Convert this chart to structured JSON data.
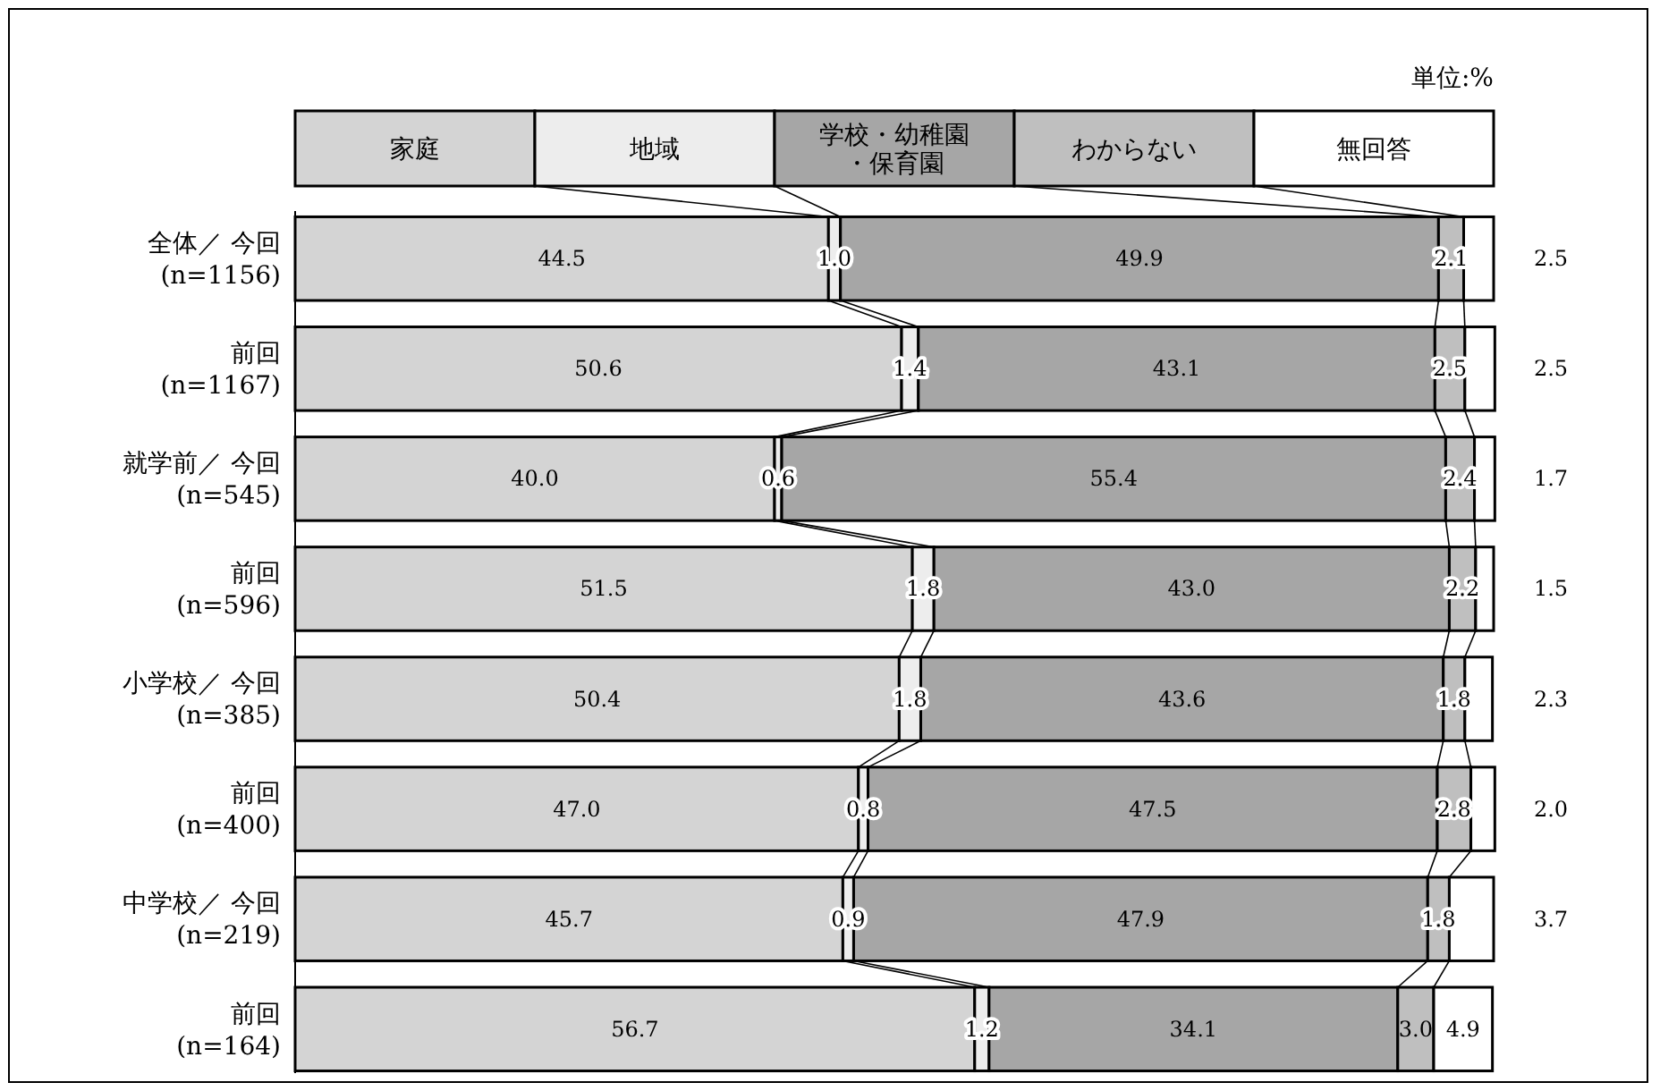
{
  "chart_data": {
    "type": "bar",
    "orientation": "horizontal",
    "stacked": true,
    "xlim": [
      0,
      100
    ],
    "legend": "top",
    "categories": [
      "全体／ 今回\n(n=1156)",
      "前回\n(n=1167)",
      "就学前／ 今回\n(n=545)",
      "前回\n(n=596)",
      "小学校／ 今回\n(n=385)",
      "前回\n(n=400)",
      "中学校／ 今回\n(n=219)",
      "前回\n(n=164)"
    ],
    "series": [
      {
        "name": "家庭",
        "color": "#d4d4d4",
        "values": [
          44.5,
          50.6,
          40.0,
          51.5,
          50.4,
          47.0,
          45.7,
          56.7
        ],
        "value_labels": [
          "44.5",
          "50.6",
          "40.0",
          "51.5",
          "50.4",
          "47.0",
          "45.7",
          "56.7"
        ]
      },
      {
        "name": "地域",
        "color": "#ededed",
        "values": [
          1.0,
          1.4,
          0.6,
          1.8,
          1.8,
          0.8,
          0.9,
          1.2
        ],
        "value_labels": [
          "1.0",
          "1.4",
          "0.6",
          "1.8",
          "1.8",
          "0.8",
          "0.9",
          "1.2"
        ]
      },
      {
        "name": "学校・幼稚園・保育園",
        "color": "#a6a6a6",
        "values": [
          49.9,
          43.1,
          55.4,
          43.0,
          43.6,
          47.5,
          47.9,
          34.1
        ],
        "value_labels": [
          "49.9",
          "43.1",
          "55.4",
          "43.0",
          "43.6",
          "47.5",
          "47.9",
          "34.1"
        ]
      },
      {
        "name": "わからない",
        "color": "#bfbfbf",
        "values": [
          2.1,
          2.5,
          2.4,
          2.2,
          1.8,
          2.8,
          1.8,
          3.0
        ],
        "value_labels": [
          "2.1",
          "2.5",
          "2.4",
          "2.2",
          "1.8",
          "2.8",
          "1.8",
          "3.0"
        ]
      },
      {
        "name": "無回答",
        "color": "#ffffff",
        "values": [
          2.5,
          2.5,
          1.7,
          1.5,
          2.3,
          2.0,
          3.7,
          4.9
        ],
        "value_labels": [
          "2.5",
          "2.5",
          "1.7",
          "1.5",
          "2.3",
          "2.0",
          "3.7",
          "4.9"
        ]
      }
    ],
    "annotations": [
      "単位:%"
    ]
  }
}
